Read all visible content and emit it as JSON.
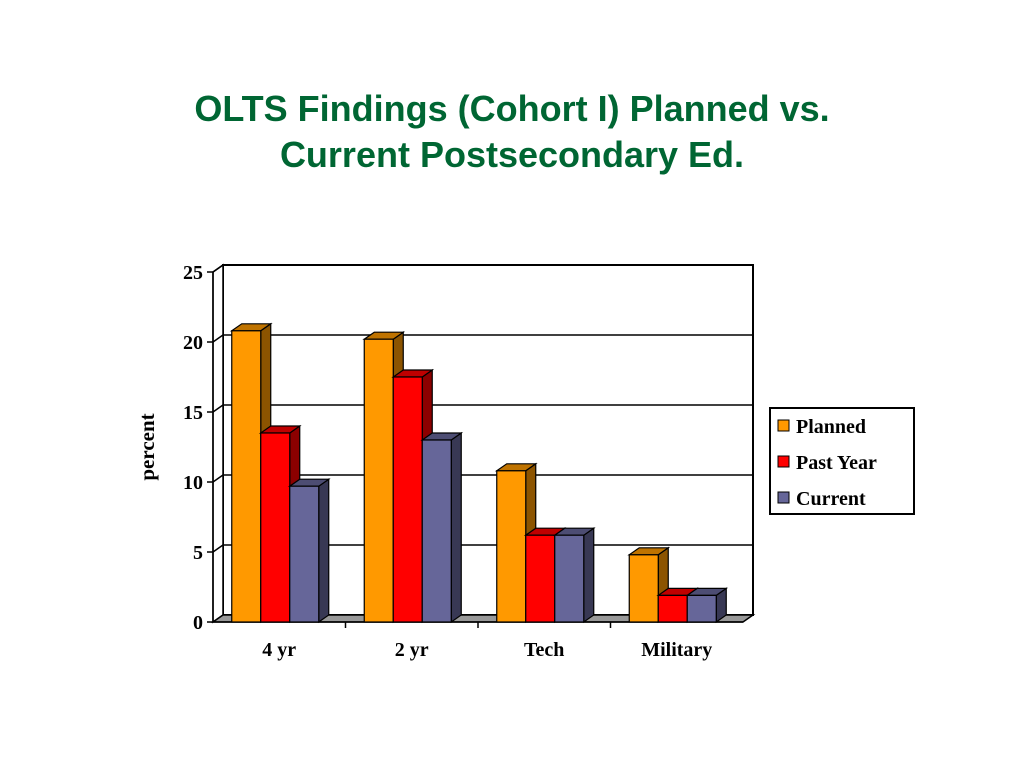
{
  "slide": {
    "title_line1": "OLTS Findings (Cohort I) Planned vs.",
    "title_line2": "Current Postsecondary Ed."
  },
  "colors": {
    "title": "#006633",
    "planned": "#FF9900",
    "past_year": "#FF0000",
    "current": "#666699",
    "wall": "#FFFFFF",
    "floor": "#999999"
  },
  "chart_data": {
    "type": "bar",
    "style": "3d-clustered",
    "title": "",
    "xlabel": "",
    "ylabel": "percent",
    "ylim": [
      0,
      25
    ],
    "yticks": [
      0,
      5,
      10,
      15,
      20,
      25
    ],
    "grid": true,
    "legend_position": "right",
    "categories": [
      "4 yr",
      "2 yr",
      "Tech",
      "Military"
    ],
    "series": [
      {
        "name": "Planned",
        "color": "#FF9900",
        "values": [
          20.8,
          20.2,
          10.8,
          4.8
        ]
      },
      {
        "name": "Past Year",
        "color": "#FF0000",
        "values": [
          13.5,
          17.5,
          6.2,
          1.9
        ]
      },
      {
        "name": "Current",
        "color": "#666699",
        "values": [
          9.7,
          13.0,
          6.2,
          1.9
        ]
      }
    ]
  }
}
